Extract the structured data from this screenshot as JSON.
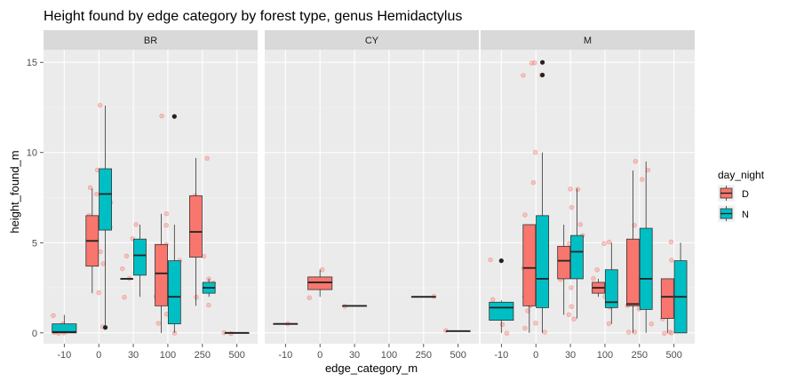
{
  "chart_data": {
    "type": "boxplot",
    "title": "Height found by edge category by forest type, genus Hemidactylus",
    "xlabel": "edge_category_m",
    "ylabel": "height_found_m",
    "ylim": [
      -0.6,
      15.7
    ],
    "y_ticks": [
      0,
      5,
      10,
      15
    ],
    "categories": [
      "-10",
      "0",
      "30",
      "100",
      "250",
      "500"
    ],
    "legend": {
      "title": "day_night",
      "placement": "right",
      "entries": [
        {
          "label": "D",
          "color": "#F8766D"
        },
        {
          "label": "N",
          "color": "#00BFC4"
        }
      ]
    },
    "facets": [
      {
        "label": "BR",
        "boxes": [
          {
            "category": "-10",
            "group": "N",
            "min": 0,
            "q1": 0,
            "median": 0.05,
            "q3": 0.5,
            "max": 1.0,
            "outliers": []
          },
          {
            "category": "0",
            "group": "D",
            "min": 2.2,
            "q1": 3.7,
            "median": 5.1,
            "q3": 6.5,
            "max": 8.0,
            "outliers": []
          },
          {
            "category": "0",
            "group": "N",
            "min": 0.3,
            "q1": 5.7,
            "median": 7.7,
            "q3": 9.1,
            "max": 12.6,
            "outliers": [
              0.3
            ]
          },
          {
            "category": "30",
            "group": "D",
            "min": 3.0,
            "q1": 3.0,
            "median": 3.0,
            "q3": 3.0,
            "max": 3.0,
            "outliers": []
          },
          {
            "category": "30",
            "group": "N",
            "min": 2.0,
            "q1": 3.2,
            "median": 4.3,
            "q3": 5.2,
            "max": 6.0,
            "outliers": []
          },
          {
            "category": "100",
            "group": "D",
            "min": 0.0,
            "q1": 1.5,
            "median": 3.3,
            "q3": 4.9,
            "max": 6.6,
            "outliers": []
          },
          {
            "category": "100",
            "group": "N",
            "min": 0.0,
            "q1": 0.5,
            "median": 2.0,
            "q3": 4.0,
            "max": 6.0,
            "outliers": [
              12.0
            ]
          },
          {
            "category": "250",
            "group": "D",
            "min": 1.5,
            "q1": 4.2,
            "median": 5.6,
            "q3": 7.6,
            "max": 9.7,
            "outliers": []
          },
          {
            "category": "250",
            "group": "N",
            "min": 2.0,
            "q1": 2.2,
            "median": 2.5,
            "q3": 2.8,
            "max": 3.0,
            "outliers": []
          },
          {
            "category": "500",
            "group": "N",
            "min": 0.0,
            "q1": 0.0,
            "median": 0.0,
            "q3": 0.0,
            "max": 0.0,
            "outliers": []
          }
        ]
      },
      {
        "label": "CY",
        "boxes": [
          {
            "category": "-10",
            "group": "D",
            "min": 0.5,
            "q1": 0.5,
            "median": 0.5,
            "q3": 0.5,
            "max": 0.5,
            "outliers": []
          },
          {
            "category": "0",
            "group": "D",
            "min": 2.0,
            "q1": 2.4,
            "median": 2.8,
            "q3": 3.1,
            "max": 3.5,
            "outliers": []
          },
          {
            "category": "30",
            "group": "D",
            "min": 1.5,
            "q1": 1.5,
            "median": 1.5,
            "q3": 1.5,
            "max": 1.5,
            "outliers": []
          },
          {
            "category": "250",
            "group": "D",
            "min": 2.0,
            "q1": 2.0,
            "median": 2.0,
            "q3": 2.0,
            "max": 2.0,
            "outliers": []
          },
          {
            "category": "500",
            "group": "D",
            "min": 0.1,
            "q1": 0.1,
            "median": 0.1,
            "q3": 0.1,
            "max": 0.1,
            "outliers": []
          }
        ]
      },
      {
        "label": "M",
        "boxes": [
          {
            "category": "-10",
            "group": "N",
            "min": 0.0,
            "q1": 0.7,
            "median": 1.4,
            "q3": 1.7,
            "max": 1.8,
            "outliers": [
              4.0
            ]
          },
          {
            "category": "0",
            "group": "D",
            "min": 0.0,
            "q1": 1.5,
            "median": 3.6,
            "q3": 6.0,
            "max": 6.0,
            "outliers": []
          },
          {
            "category": "0",
            "group": "N",
            "min": 0.0,
            "q1": 1.4,
            "median": 3.0,
            "q3": 6.5,
            "max": 10.0,
            "outliers": [
              14.3,
              15.0
            ]
          },
          {
            "category": "30",
            "group": "D",
            "min": 1.0,
            "q1": 3.0,
            "median": 4.0,
            "q3": 4.8,
            "max": 6.0,
            "outliers": []
          },
          {
            "category": "30",
            "group": "N",
            "min": 0.8,
            "q1": 3.0,
            "median": 4.5,
            "q3": 5.4,
            "max": 8.0,
            "outliers": []
          },
          {
            "category": "100",
            "group": "D",
            "min": 2.0,
            "q1": 2.2,
            "median": 2.5,
            "q3": 2.8,
            "max": 3.0,
            "outliers": []
          },
          {
            "category": "100",
            "group": "N",
            "min": 0.5,
            "q1": 1.4,
            "median": 1.7,
            "q3": 3.5,
            "max": 5.0,
            "outliers": []
          },
          {
            "category": "250",
            "group": "D",
            "min": 0.0,
            "q1": 1.5,
            "median": 1.6,
            "q3": 5.2,
            "max": 9.0,
            "outliers": []
          },
          {
            "category": "250",
            "group": "N",
            "min": 0.0,
            "q1": 1.3,
            "median": 3.0,
            "q3": 5.8,
            "max": 9.5,
            "outliers": []
          },
          {
            "category": "500",
            "group": "D",
            "min": 0.0,
            "q1": 0.8,
            "median": 2.0,
            "q3": 3.0,
            "max": 3.0,
            "outliers": []
          },
          {
            "category": "500",
            "group": "N",
            "min": 0.0,
            "q1": 0.0,
            "median": 2.0,
            "q3": 4.0,
            "max": 5.0,
            "outliers": []
          }
        ]
      }
    ],
    "jitter_points": [
      {
        "facet": "BR",
        "category": "-10",
        "values": [
          0,
          0,
          0.5,
          1.0,
          0.1,
          0
        ]
      },
      {
        "facet": "BR",
        "category": "0",
        "values": [
          0.3,
          2.2,
          3.8,
          4.5,
          5.1,
          5.9,
          6.5,
          7.2,
          7.7,
          8.0,
          8.1,
          9.0,
          12.6
        ]
      },
      {
        "facet": "BR",
        "category": "30",
        "values": [
          2.0,
          3.0,
          3.6,
          4.3,
          5.2,
          6.0
        ]
      },
      {
        "facet": "BR",
        "category": "100",
        "values": [
          0,
          0.5,
          1.0,
          2.0,
          3.3,
          4.0,
          4.9,
          6.0,
          6.6,
          12.0
        ]
      },
      {
        "facet": "BR",
        "category": "250",
        "values": [
          1.5,
          2.0,
          2.5,
          2.8,
          3.0,
          4.2,
          5.6,
          7.6,
          9.7
        ]
      },
      {
        "facet": "BR",
        "category": "500",
        "values": [
          0,
          0
        ]
      },
      {
        "facet": "CY",
        "category": "-10",
        "values": [
          0.5
        ]
      },
      {
        "facet": "CY",
        "category": "0",
        "values": [
          2.0,
          2.8,
          3.5
        ]
      },
      {
        "facet": "CY",
        "category": "30",
        "values": [
          1.5
        ]
      },
      {
        "facet": "CY",
        "category": "250",
        "values": [
          2.0
        ]
      },
      {
        "facet": "CY",
        "category": "500",
        "values": [
          0.1
        ]
      },
      {
        "facet": "M",
        "category": "-10",
        "values": [
          0,
          1.0,
          1.5,
          1.8,
          4.0,
          0.5
        ]
      },
      {
        "facet": "M",
        "category": "0",
        "values": [
          0,
          0.5,
          1.5,
          2.0,
          3.0,
          4.0,
          5.0,
          6.0,
          8.3,
          10.0,
          14.3,
          15.0,
          15.0,
          14.3,
          2.5,
          0.3,
          6.5,
          1.2,
          3.6
        ]
      },
      {
        "facet": "M",
        "category": "30",
        "values": [
          1.0,
          1.5,
          2.5,
          3.0,
          4.0,
          4.5,
          5.0,
          6.0,
          8.0,
          8.0,
          7.0,
          0.8,
          3.8,
          5.4
        ]
      },
      {
        "facet": "M",
        "category": "100",
        "values": [
          0.5,
          1.5,
          2.0,
          2.5,
          3.0,
          5.0,
          5.0,
          1.4,
          3.5
        ]
      },
      {
        "facet": "M",
        "category": "250",
        "values": [
          0,
          0.5,
          1.5,
          3.0,
          5.0,
          6.0,
          8.5,
          9.0,
          9.5,
          2.0,
          0,
          1.3
        ]
      },
      {
        "facet": "M",
        "category": "500",
        "values": [
          0,
          0,
          0.8,
          2.0,
          3.0,
          4.0,
          5.0,
          0,
          1.5
        ]
      }
    ]
  }
}
